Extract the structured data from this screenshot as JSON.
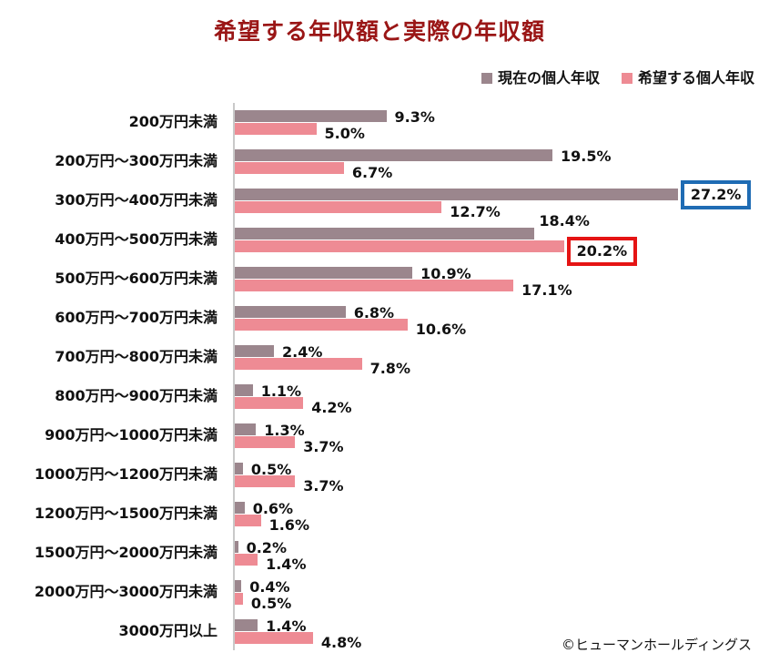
{
  "title": "希望する年収額と実際の年収額",
  "colors": {
    "title": "#9a1616",
    "current_series": "#9b868d",
    "desired_series": "#ee8b94",
    "highlight_blue_box": "#1f6cb4",
    "highlight_red_box": "#e51414",
    "axis_line": "#c9c9c9",
    "label_text": "#111111"
  },
  "chart_data": {
    "type": "bar",
    "orientation": "horizontal",
    "title": "希望する年収額と実際の年収額",
    "categories": [
      "200万円未満",
      "200万円～300万円未満",
      "300万円～400万円未満",
      "400万円～500万円未満",
      "500万円～600万円未満",
      "600万円～700万円未満",
      "700万円～800万円未満",
      "800万円～900万円未満",
      "900万円～1000万円未満",
      "1000万円～1200万円未満",
      "1200万円～1500万円未満",
      "1500万円～2000万円未満",
      "2000万円～3000万円未満",
      "3000万円以上"
    ],
    "series": [
      {
        "name": "現在の個人年収",
        "color": "#9b868d",
        "values": [
          9.3,
          19.5,
          27.2,
          18.4,
          10.9,
          6.8,
          2.4,
          1.1,
          1.3,
          0.5,
          0.6,
          0.2,
          0.4,
          1.4
        ]
      },
      {
        "name": "希望する個人年収",
        "color": "#ee8b94",
        "values": [
          5.0,
          6.7,
          12.7,
          20.2,
          17.1,
          10.6,
          7.8,
          4.2,
          3.7,
          3.7,
          1.6,
          1.4,
          0.5,
          4.8
        ]
      }
    ],
    "value_label_format": "{value}%",
    "xlim": [
      0,
      28
    ],
    "grid": false,
    "legend_position": "top-right",
    "annotations": [
      {
        "series_index": 0,
        "category_index": 2,
        "value": 27.2,
        "highlight": "blue-box"
      },
      {
        "series_index": 1,
        "category_index": 3,
        "value": 20.2,
        "highlight": "red-box"
      },
      {
        "series_index": 0,
        "category_index": 3,
        "value": 18.4,
        "label_position": "above-bar"
      }
    ]
  },
  "footer": {
    "copyright": "©ヒューマンホールディングス"
  }
}
